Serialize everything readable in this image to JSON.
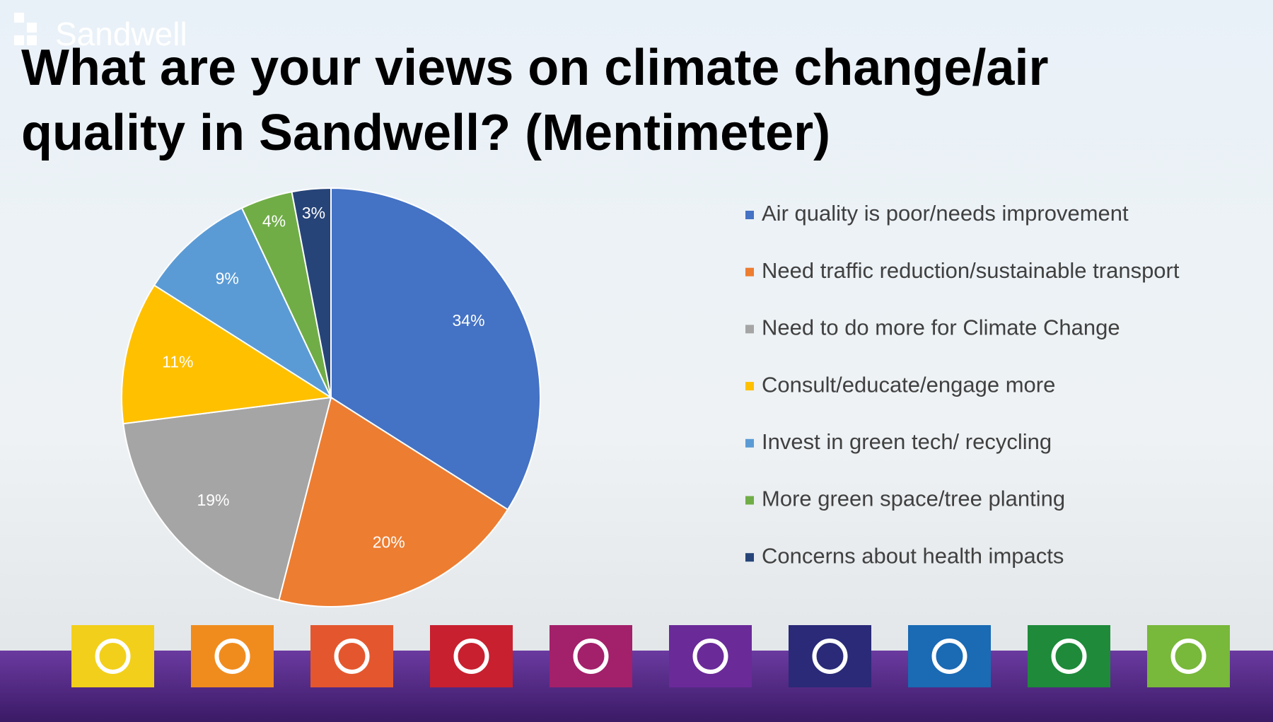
{
  "logo": "Sandwell",
  "chart_data": {
    "type": "pie",
    "title": "What are your views on climate change/air quality in Sandwell? (Mentimeter)",
    "categories": [
      "Air quality is poor/needs improvement",
      "Need traffic reduction/sustainable transport",
      "Need to do more for Climate Change",
      "Consult/educate/engage more",
      "Invest in green tech/ recycling",
      "More green space/tree planting",
      "Concerns about health impacts"
    ],
    "values": [
      34,
      20,
      19,
      11,
      9,
      4,
      3
    ],
    "value_labels": [
      "34%",
      "20%",
      "19%",
      "11%",
      "9%",
      "4%",
      "3%"
    ],
    "colors": [
      "#4472c4",
      "#ed7d31",
      "#a5a5a5",
      "#ffc000",
      "#5b9bd5",
      "#70ad47",
      "#264478"
    ],
    "legend": "right"
  }
}
